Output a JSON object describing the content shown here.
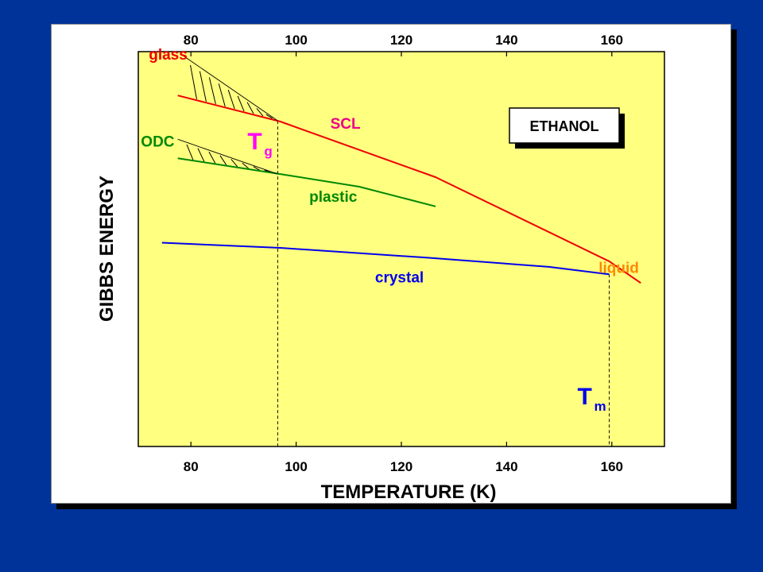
{
  "chart_data": {
    "type": "line",
    "title": "",
    "xlabel": "TEMPERATURE (K)",
    "ylabel": "GIBBS ENERGY",
    "xlim": [
      70,
      170
    ],
    "ylim": [
      0,
      100
    ],
    "x_ticks": [
      80,
      100,
      120,
      140,
      160
    ],
    "y_ticks_shown": false,
    "grid": false,
    "legend": "ETHANOL",
    "legend_position": "top-right",
    "colors": {
      "plot_bg": "#ffff80",
      "slide_bg": "#003399",
      "glass_scl_liquid": "#ee0000",
      "odc_plastic": "#008800",
      "crystal": "#0000ee"
    },
    "series": [
      {
        "name": "SCL",
        "color": "#ee0000",
        "points": [
          [
            77.5,
            88.9
          ],
          [
            97,
            82.3
          ],
          [
            126.5,
            68.2
          ],
          [
            159.5,
            46.9
          ],
          [
            165.5,
            41.4
          ]
        ]
      },
      {
        "name": "plastic",
        "color": "#008800",
        "points": [
          [
            77.5,
            73.0
          ],
          [
            97,
            69.0
          ],
          [
            112,
            65.8
          ],
          [
            126.5,
            60.8
          ]
        ]
      },
      {
        "name": "crystal",
        "color": "#0000ee",
        "points": [
          [
            74.5,
            51.6
          ],
          [
            97,
            50.3
          ],
          [
            125,
            47.8
          ],
          [
            148,
            45.5
          ],
          [
            159.5,
            43.6
          ]
        ]
      },
      {
        "name": "glass extrapolation",
        "color": "#000000",
        "style": "thin",
        "points": [
          [
            78.5,
            99.0
          ],
          [
            96.5,
            82.5
          ]
        ]
      },
      {
        "name": "ODC extrapolation",
        "color": "#000000",
        "style": "thin",
        "points": [
          [
            77.5,
            77.8
          ],
          [
            96.5,
            69.0
          ]
        ]
      }
    ],
    "vertical_markers": [
      {
        "x": 96.5,
        "label": "T",
        "subscript": "g",
        "color": "#ff00ff"
      },
      {
        "x": 159.5,
        "label": "T",
        "subscript": "m",
        "color": "#0000ee"
      }
    ],
    "annotations": [
      {
        "text": "glass",
        "color": "#ee0000",
        "x": 72,
        "y": 98
      },
      {
        "text": "SCL",
        "color": "#ee0088",
        "x": 106.5,
        "y": 80.5
      },
      {
        "text": "ODC",
        "color": "#008800",
        "x": 70.5,
        "y": 76
      },
      {
        "text": "plastic",
        "color": "#008800",
        "x": 102.5,
        "y": 62
      },
      {
        "text": "crystal",
        "color": "#0000ee",
        "x": 115,
        "y": 41.5
      },
      {
        "text": "liquid",
        "color": "#ff8800",
        "x": 157.5,
        "y": 44
      }
    ]
  }
}
